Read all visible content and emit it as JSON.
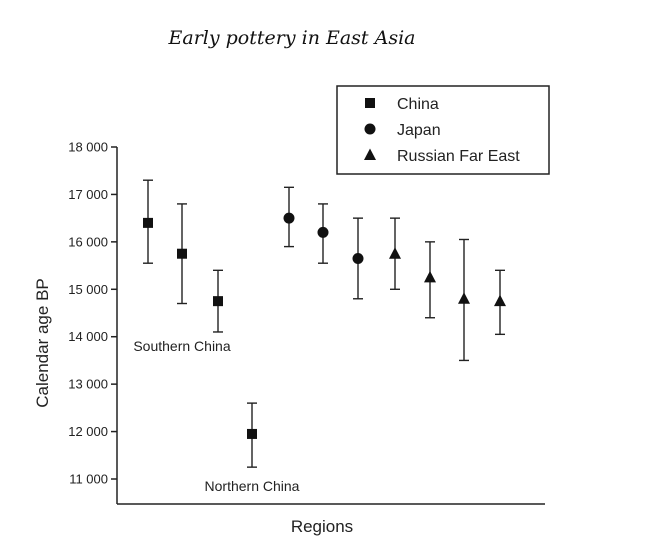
{
  "chart_data": {
    "type": "scatter",
    "title": "Early pottery in East Asia",
    "xlabel": "Regions",
    "ylabel": "Calendar age BP",
    "ylim": [
      11000,
      18000
    ],
    "yticks": [
      11000,
      12000,
      13000,
      14000,
      15000,
      16000,
      17000,
      18000
    ],
    "ytick_labels": [
      "11 000",
      "12 000",
      "13 000",
      "14 000",
      "15 000",
      "16 000",
      "17 000",
      "18 000"
    ],
    "grid": false,
    "legend_position": "top-right",
    "series": [
      {
        "name": "China",
        "marker": "square",
        "points": [
          {
            "x": 1,
            "y": 16400,
            "low": 15550,
            "high": 17300
          },
          {
            "x": 2,
            "y": 15750,
            "low": 14700,
            "high": 16800
          },
          {
            "x": 3,
            "y": 14750,
            "low": 14100,
            "high": 15400
          },
          {
            "x": 4,
            "y": 11950,
            "low": 11250,
            "high": 12600
          }
        ]
      },
      {
        "name": "Japan",
        "marker": "circle",
        "points": [
          {
            "x": 5,
            "y": 16500,
            "low": 15900,
            "high": 17150
          },
          {
            "x": 6,
            "y": 16200,
            "low": 15550,
            "high": 16800
          },
          {
            "x": 7,
            "y": 15650,
            "low": 14800,
            "high": 16500
          }
        ]
      },
      {
        "name": "Russian Far East",
        "marker": "triangle",
        "points": [
          {
            "x": 8,
            "y": 15750,
            "low": 15000,
            "high": 16500
          },
          {
            "x": 9,
            "y": 15250,
            "low": 14400,
            "high": 16000
          },
          {
            "x": 10,
            "y": 14800,
            "low": 13500,
            "high": 16050
          },
          {
            "x": 11,
            "y": 14750,
            "low": 14050,
            "high": 15400
          }
        ]
      }
    ],
    "annotations": [
      {
        "text": "Southern China",
        "x": 2,
        "y": 13800
      },
      {
        "text": "Northern China",
        "x": 4,
        "y": 10850
      }
    ]
  }
}
